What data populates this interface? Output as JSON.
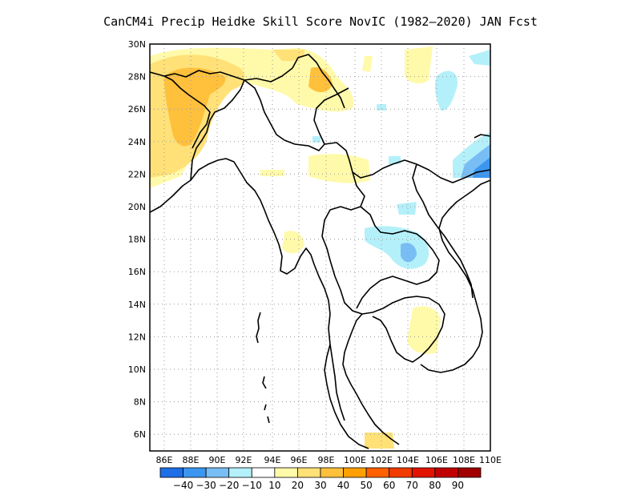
{
  "title": "CanCM4i Precip Heidke Skill Score NovIC (1982–2020) JAN Fcst",
  "lat_labels": [
    "30N",
    "28N",
    "26N",
    "24N",
    "22N",
    "20N",
    "18N",
    "16N",
    "14N",
    "12N",
    "10N",
    "8N",
    "6N"
  ],
  "lon_labels": [
    "86E",
    "88E",
    "90E",
    "92E",
    "94E",
    "96E",
    "98E",
    "100E",
    "102E",
    "104E",
    "106E",
    "108E",
    "110E"
  ],
  "colorbar": {
    "bins": [
      {
        "color": "#1e6ee6"
      },
      {
        "color": "#3c96f0"
      },
      {
        "color": "#78bef5"
      },
      {
        "color": "#b4f0fa"
      },
      {
        "color": "#ffffff"
      },
      {
        "color": "#fffaaa"
      },
      {
        "color": "#ffe178"
      },
      {
        "color": "#ffc03c"
      },
      {
        "color": "#ffa000"
      },
      {
        "color": "#ff6000"
      },
      {
        "color": "#f03c00"
      },
      {
        "color": "#e11400"
      },
      {
        "color": "#c00000"
      },
      {
        "color": "#a00000"
      }
    ],
    "labels": [
      "−40",
      "−30",
      "−20",
      "−10",
      "10",
      "20",
      "30",
      "40",
      "50",
      "60",
      "70",
      "80",
      "90"
    ]
  }
}
